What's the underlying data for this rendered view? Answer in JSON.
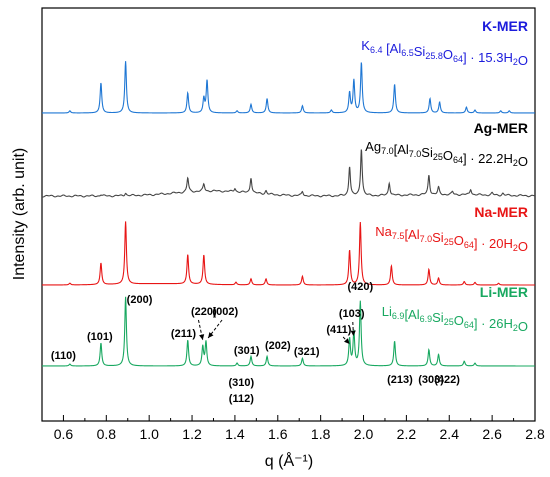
{
  "chart_data": {
    "type": "line",
    "xlabel": "q (Å⁻¹)",
    "ylabel": "Intensity (arb. unit)",
    "xlim": [
      0.5,
      2.8
    ],
    "x_ticks": [
      "0.6",
      "0.8",
      "1.0",
      "1.2",
      "1.4",
      "1.6",
      "1.8",
      "2.0",
      "2.2",
      "2.4",
      "2.6",
      "2.8"
    ],
    "y_ticks_shown": false,
    "series": [
      {
        "key": "k",
        "name": "K-MER",
        "formula": "K6.4 [Al6.5Si25.8O64] · 15.3H2O",
        "formula_parts": [
          [
            "K",
            false
          ],
          [
            "6.4",
            true
          ],
          [
            " [Al",
            false
          ],
          [
            "6.5",
            true
          ],
          [
            "Si",
            false
          ],
          [
            "25.8",
            true
          ],
          [
            "O",
            false
          ],
          [
            "64",
            true
          ],
          [
            "] · 15.3H",
            false
          ],
          [
            "2",
            true
          ],
          [
            "O",
            false
          ]
        ],
        "color": "#1f77d4",
        "label_color": "#1c1cdc",
        "peaks": [
          [
            0.63,
            0.03
          ],
          [
            0.775,
            0.42
          ],
          [
            0.89,
            0.72
          ],
          [
            1.18,
            0.28
          ],
          [
            1.255,
            0.2
          ],
          [
            1.27,
            0.45
          ],
          [
            1.41,
            0.03
          ],
          [
            1.475,
            0.12
          ],
          [
            1.55,
            0.2
          ],
          [
            1.715,
            0.1
          ],
          [
            1.85,
            0.04
          ],
          [
            1.935,
            0.28
          ],
          [
            1.955,
            0.45
          ],
          [
            1.99,
            0.7
          ],
          [
            2.145,
            0.4
          ],
          [
            2.31,
            0.2
          ],
          [
            2.355,
            0.15
          ],
          [
            2.48,
            0.08
          ],
          [
            2.52,
            0.04
          ],
          [
            2.64,
            0.03
          ],
          [
            2.68,
            0.03
          ]
        ]
      },
      {
        "key": "ag",
        "name": "Ag-MER",
        "formula": "Ag7.0[Al7.0Si25O64] · 22.2H2O",
        "formula_parts": [
          [
            "Ag",
            false
          ],
          [
            "7.0",
            true
          ],
          [
            "[Al",
            false
          ],
          [
            "7.0",
            true
          ],
          [
            "Si",
            false
          ],
          [
            "25",
            true
          ],
          [
            "O",
            false
          ],
          [
            "64",
            true
          ],
          [
            "] · 22.2H",
            false
          ],
          [
            "2",
            true
          ],
          [
            "O",
            false
          ]
        ],
        "color": "#454545",
        "label_color": "#000000",
        "peaks": [
          [
            0.775,
            0.02
          ],
          [
            0.89,
            0.04
          ],
          [
            1.18,
            0.2
          ],
          [
            1.255,
            0.1
          ],
          [
            1.4,
            0.05
          ],
          [
            1.475,
            0.22
          ],
          [
            1.545,
            0.05
          ],
          [
            1.715,
            0.06
          ],
          [
            1.935,
            0.42
          ],
          [
            1.99,
            0.67
          ],
          [
            2.12,
            0.18
          ],
          [
            2.305,
            0.28
          ],
          [
            2.35,
            0.1
          ],
          [
            2.415,
            0.04
          ],
          [
            2.5,
            0.08
          ],
          [
            2.6,
            0.03
          ],
          [
            2.65,
            0.03
          ]
        ]
      },
      {
        "key": "na",
        "name": "Na-MER",
        "formula": "Na7.5[Al7.0Si25O64] · 20H2O",
        "formula_parts": [
          [
            "Na",
            false
          ],
          [
            "7.5",
            true
          ],
          [
            "[Al",
            false
          ],
          [
            "7.0",
            true
          ],
          [
            "Si",
            false
          ],
          [
            "25",
            true
          ],
          [
            "O",
            false
          ],
          [
            "64",
            true
          ],
          [
            "] · 20H",
            false
          ],
          [
            "2",
            true
          ],
          [
            "O",
            false
          ]
        ],
        "color": "#e81515",
        "label_color": "#e81515",
        "peaks": [
          [
            0.63,
            0.02
          ],
          [
            0.775,
            0.25
          ],
          [
            0.89,
            0.72
          ],
          [
            1.18,
            0.34
          ],
          [
            1.255,
            0.34
          ],
          [
            1.405,
            0.03
          ],
          [
            1.475,
            0.07
          ],
          [
            1.545,
            0.07
          ],
          [
            1.715,
            0.1
          ],
          [
            1.935,
            0.4
          ],
          [
            1.985,
            0.72
          ],
          [
            2.13,
            0.22
          ],
          [
            2.305,
            0.18
          ],
          [
            2.35,
            0.08
          ],
          [
            2.47,
            0.04
          ],
          [
            2.52,
            0.03
          ],
          [
            2.63,
            0.02
          ]
        ]
      },
      {
        "key": "li",
        "name": "Li-MER",
        "formula": "Li6.9[Al6.9Si25O64] · 26H2O",
        "formula_parts": [
          [
            "Li",
            false
          ],
          [
            "6.9",
            true
          ],
          [
            "[Al",
            false
          ],
          [
            "6.9",
            true
          ],
          [
            "Si",
            false
          ],
          [
            "25",
            true
          ],
          [
            "O",
            false
          ],
          [
            "64",
            true
          ],
          [
            "] · 26H",
            false
          ],
          [
            "2",
            true
          ],
          [
            "O",
            false
          ]
        ],
        "color": "#18a860",
        "label_color": "#18a860",
        "peaks": [
          [
            0.63,
            0.02
          ],
          [
            0.775,
            0.24
          ],
          [
            0.89,
            0.72
          ],
          [
            1.18,
            0.27
          ],
          [
            1.25,
            0.2
          ],
          [
            1.265,
            0.25
          ],
          [
            1.41,
            0.03
          ],
          [
            1.475,
            0.1
          ],
          [
            1.55,
            0.1
          ],
          [
            1.715,
            0.08
          ],
          [
            1.935,
            0.28
          ],
          [
            1.955,
            0.35
          ],
          [
            1.985,
            0.67
          ],
          [
            2.145,
            0.26
          ],
          [
            2.305,
            0.17
          ],
          [
            2.35,
            0.12
          ],
          [
            2.47,
            0.05
          ],
          [
            2.52,
            0.03
          ]
        ]
      }
    ],
    "annotations": [
      {
        "text": "(110)",
        "q": 0.6
      },
      {
        "text": "(101)",
        "q": 0.77
      },
      {
        "text": "(200)",
        "q": 0.955
      },
      {
        "text": "(211)",
        "q": 1.16
      },
      {
        "text": "(220)",
        "q": 1.255
      },
      {
        "text": "(002)",
        "q": 1.355
      },
      {
        "text": "(301)",
        "q": 1.455
      },
      {
        "text": "(202)",
        "q": 1.6
      },
      {
        "text": "(321)",
        "q": 1.735
      },
      {
        "text": "(310)",
        "q": 1.43
      },
      {
        "text": "(112)",
        "q": 1.43
      },
      {
        "text": "(411)",
        "q": 1.885
      },
      {
        "text": "(103)",
        "q": 1.945
      },
      {
        "text": "(420)",
        "q": 1.985
      },
      {
        "text": "(213)",
        "q": 2.17
      },
      {
        "text": "(303)",
        "q": 2.315
      },
      {
        "text": "(422)",
        "q": 2.39
      }
    ]
  }
}
